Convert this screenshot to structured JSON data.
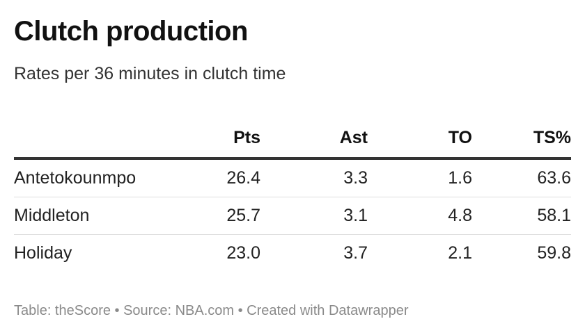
{
  "title": "Clutch production",
  "subtitle": "Rates per 36 minutes in clutch time",
  "footer": "Table: theScore • Source: NBA.com • Created with Datawrapper",
  "chart_data": {
    "type": "table",
    "title": "Clutch production",
    "subtitle": "Rates per 36 minutes in clutch time",
    "columns": [
      "",
      "Pts",
      "Ast",
      "TO",
      "TS%"
    ],
    "rows": [
      {
        "name": "Antetokounmpo",
        "pts": "26.4",
        "ast": "3.3",
        "to": "1.6",
        "ts": "63.6"
      },
      {
        "name": "Middleton",
        "pts": "25.7",
        "ast": "3.1",
        "to": "4.8",
        "ts": "58.1"
      },
      {
        "name": "Holiday",
        "pts": "23.0",
        "ast": "3.7",
        "to": "2.1",
        "ts": "59.8"
      }
    ]
  }
}
